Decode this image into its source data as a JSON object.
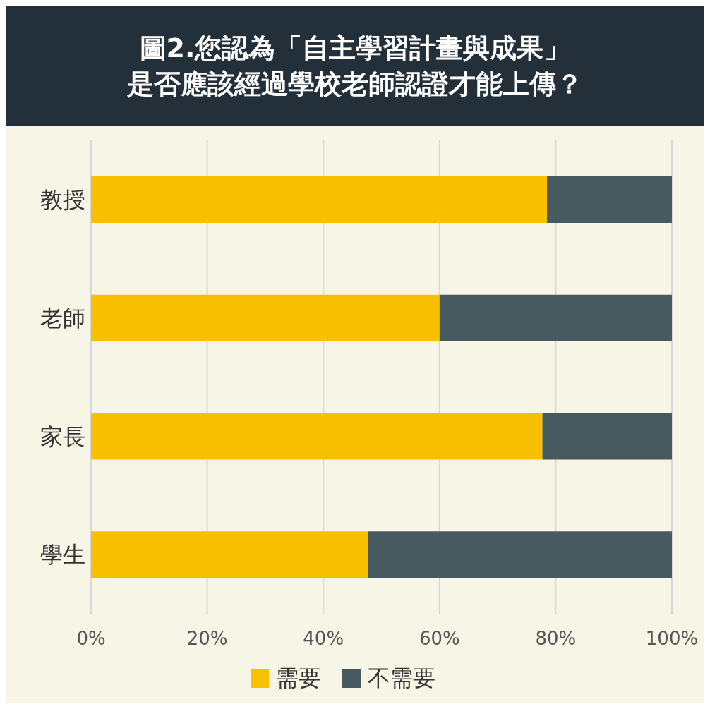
{
  "chart_data": {
    "type": "bar",
    "orientation": "horizontal",
    "stacked": true,
    "title": "圖2.您認為「自主學習計畫與成果」是否應該經過學校老師認證才能上傳？",
    "categories": [
      "教授",
      "老師",
      "家長",
      "學生"
    ],
    "series": [
      {
        "name": "需要",
        "color": "#f9c000",
        "values": [
          78.5,
          60,
          77.7,
          47.7
        ]
      },
      {
        "name": "不需要",
        "color": "#465a60",
        "values": [
          21.5,
          40,
          22.3,
          52.3
        ]
      }
    ],
    "xlim": [
      0,
      100
    ],
    "xticks": [
      {
        "value": 0,
        "label": "0%"
      },
      {
        "value": 20,
        "label": "20%"
      },
      {
        "value": 40,
        "label": "40%"
      },
      {
        "value": 60,
        "label": "60%"
      },
      {
        "value": 80,
        "label": "80%"
      },
      {
        "value": 100,
        "label": "100%"
      }
    ],
    "grid": "x",
    "legend": "bottom"
  }
}
